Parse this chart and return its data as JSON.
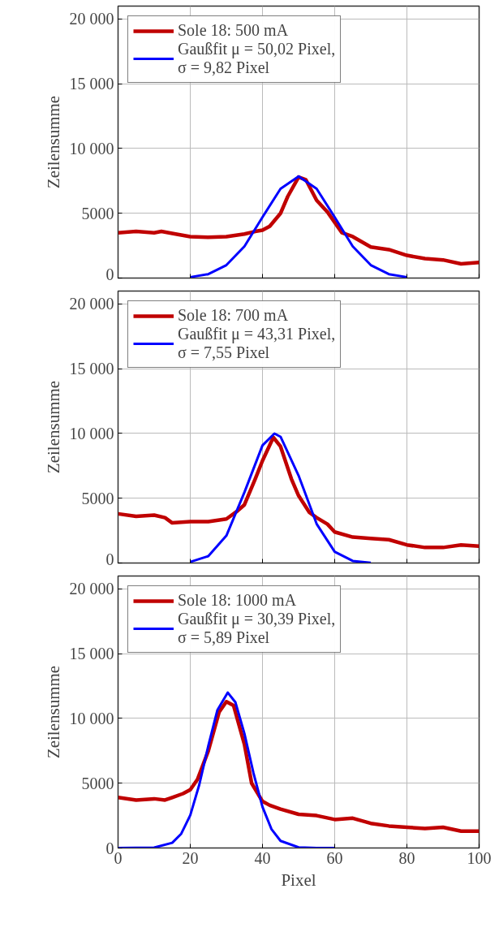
{
  "chart_data": [
    {
      "type": "line",
      "ylabel": "Zeilensumme",
      "xlim": [
        0,
        100
      ],
      "ylim": [
        0,
        21000
      ],
      "xticks": [
        0,
        20,
        40,
        60,
        80,
        100
      ],
      "yticks": [
        0,
        5000,
        {
          "value": 10000,
          "label": "10 000"
        },
        {
          "value": 15000,
          "label": "15 000"
        },
        {
          "value": 20000,
          "label": "20 000"
        }
      ],
      "tick_labels": "y",
      "grid": true,
      "legend": "top left",
      "series": [
        {
          "name": "Sole 18: 500 mA",
          "color": "#c00000",
          "x": [
            0,
            5,
            10,
            12,
            15,
            20,
            25,
            30,
            35,
            38,
            40,
            42,
            45,
            47,
            50,
            52,
            55,
            58,
            60,
            62,
            65,
            70,
            75,
            80,
            85,
            90,
            95,
            100
          ],
          "values": [
            3500,
            3600,
            3500,
            3600,
            3450,
            3200,
            3150,
            3200,
            3400,
            3600,
            3700,
            4000,
            5000,
            6300,
            7800,
            7600,
            6000,
            5100,
            4300,
            3500,
            3200,
            2400,
            2200,
            1750,
            1500,
            1400,
            1100,
            1200
          ]
        },
        {
          "name": "Gaußfit μ = 50,02 Pixel,\nσ = 9,82 Pixel",
          "color": "#0000ff",
          "x": [
            20,
            25,
            30,
            35,
            40,
            45,
            50.02,
            55,
            60,
            65,
            70,
            75,
            80
          ],
          "values": [
            70,
            300,
            1000,
            2450,
            4700,
            6900,
            7850,
            6900,
            4700,
            2450,
            1000,
            300,
            70
          ]
        }
      ]
    },
    {
      "type": "line",
      "ylabel": "Zeilensumme",
      "xlim": [
        0,
        100
      ],
      "ylim": [
        0,
        21000
      ],
      "xticks": [
        0,
        20,
        40,
        60,
        80,
        100
      ],
      "yticks": [
        0,
        5000,
        {
          "value": 10000,
          "label": "10 000"
        },
        {
          "value": 15000,
          "label": "15 000"
        },
        {
          "value": 20000,
          "label": "20 000"
        }
      ],
      "tick_labels": "y",
      "grid": true,
      "legend": "top left",
      "series": [
        {
          "name": "Sole 18: 700 mA",
          "color": "#c00000",
          "x": [
            0,
            5,
            10,
            13,
            15,
            20,
            25,
            30,
            33,
            35,
            38,
            40,
            43,
            45,
            48,
            50,
            53,
            55,
            58,
            60,
            65,
            70,
            75,
            80,
            85,
            90,
            95,
            100
          ],
          "values": [
            3800,
            3600,
            3700,
            3500,
            3100,
            3200,
            3200,
            3400,
            4000,
            4500,
            6500,
            7900,
            9700,
            9000,
            6500,
            5200,
            3900,
            3500,
            3000,
            2400,
            2000,
            1900,
            1800,
            1400,
            1200,
            1200,
            1400,
            1300
          ]
        },
        {
          "name": "Gaußfit μ = 43,31 Pixel,\nσ = 7,55 Pixel",
          "color": "#0000ff",
          "x": [
            20,
            25,
            30,
            35,
            40,
            43.31,
            45,
            50,
            55,
            60,
            65,
            70
          ],
          "values": [
            85,
            530,
            2110,
            5460,
            9080,
            10000,
            9750,
            6750,
            3020,
            870,
            160,
            20
          ]
        }
      ]
    },
    {
      "type": "line",
      "ylabel": "Zeilensumme",
      "xlabel": "Pixel",
      "xlim": [
        0,
        100
      ],
      "ylim": [
        0,
        21000
      ],
      "xticks": [
        0,
        20,
        40,
        60,
        80,
        100
      ],
      "yticks": [
        0,
        5000,
        {
          "value": 10000,
          "label": "10 000"
        },
        {
          "value": 15000,
          "label": "15 000"
        },
        {
          "value": 20000,
          "label": "20 000"
        }
      ],
      "grid": true,
      "legend": "top left",
      "series": [
        {
          "name": "Sole 18: 1000 mA",
          "color": "#c00000",
          "x": [
            0,
            5,
            10,
            13,
            15,
            18,
            20,
            22,
            25,
            28,
            30,
            32,
            35,
            37,
            40,
            42,
            45,
            50,
            55,
            60,
            65,
            70,
            75,
            80,
            85,
            90,
            95,
            100
          ],
          "values": [
            3900,
            3700,
            3800,
            3700,
            3900,
            4200,
            4500,
            5300,
            7500,
            10500,
            11300,
            11000,
            8000,
            5000,
            3600,
            3300,
            3000,
            2600,
            2500,
            2200,
            2300,
            1900,
            1700,
            1600,
            1500,
            1600,
            1300,
            1300
          ]
        },
        {
          "name": "Gaußfit μ = 30,39 Pixel,\nσ = 5,89 Pixel",
          "color": "#0000ff",
          "x": [
            0,
            10,
            15,
            17.5,
            20,
            22.5,
            25,
            27.5,
            30.39,
            32.5,
            35,
            37.5,
            40,
            42.5,
            45,
            50,
            55,
            60
          ],
          "values": [
            0,
            30,
            400,
            1100,
            2530,
            4890,
            7890,
            10640,
            12000,
            11250,
            8830,
            5790,
            3170,
            1450,
            550,
            50,
            0,
            0
          ]
        }
      ]
    }
  ]
}
